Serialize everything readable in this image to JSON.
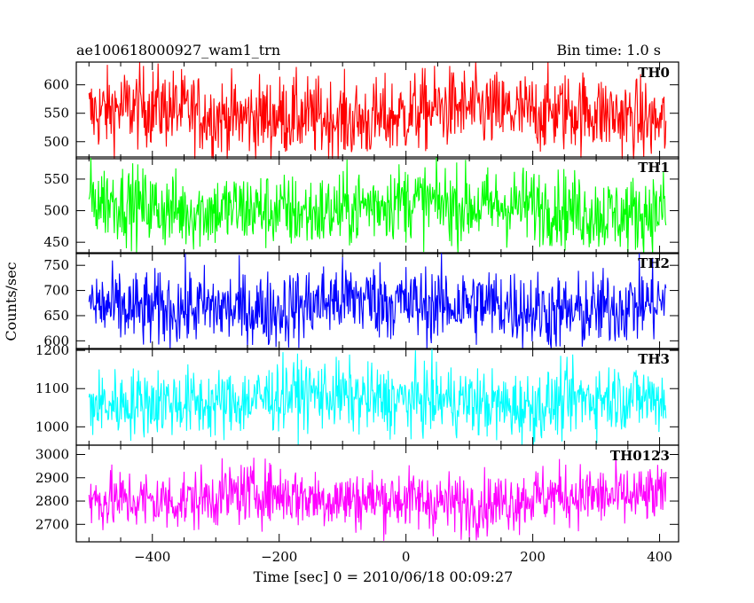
{
  "header": {
    "title": "ae100618000927_wam1_trn",
    "bin_time": "Bin time: 1.0 s"
  },
  "ylabel": "Counts/sec",
  "xlabel": "Time [sec] 0 = 2010/06/18 00:09:27",
  "chart_data": {
    "type": "line",
    "x_range": [
      -520,
      430
    ],
    "x_ticks": [
      -400,
      -200,
      0,
      200,
      400
    ],
    "x_start": -500,
    "x_end": 410,
    "panels": [
      {
        "name": "TH0",
        "color": "#ff0000",
        "ylim": [
          470,
          640
        ],
        "yticks": [
          500,
          550,
          600
        ],
        "mean": 548,
        "amp": 35
      },
      {
        "name": "TH1",
        "color": "#00ff00",
        "ylim": [
          432,
          585
        ],
        "yticks": [
          450,
          500,
          550
        ],
        "mean": 505,
        "amp": 30
      },
      {
        "name": "TH2",
        "color": "#0000ff",
        "ylim": [
          583,
          775
        ],
        "yticks": [
          600,
          650,
          700,
          750
        ],
        "mean": 670,
        "amp": 38
      },
      {
        "name": "TH3",
        "color": "#00ffff",
        "ylim": [
          952,
          1205
        ],
        "yticks": [
          1000,
          1100,
          1200
        ],
        "mean": 1070,
        "amp": 45
      },
      {
        "name": "TH0123",
        "color": "#ff00ff",
        "ylim": [
          2625,
          3040
        ],
        "yticks": [
          2700,
          2800,
          2900,
          3000
        ],
        "mean": 2810,
        "amp": 65
      }
    ]
  }
}
